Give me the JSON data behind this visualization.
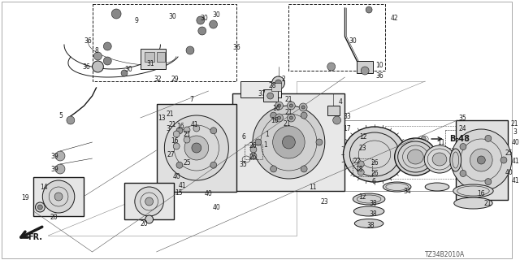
{
  "title": "",
  "diagram_code": "TZ34B2010A",
  "background_color": "#f5f5f0",
  "line_color": "#1a1a1a",
  "fig_width": 6.4,
  "fig_height": 3.2,
  "dpi": 100,
  "bottom_text": "TZ34B2010A",
  "fr_text": "FR."
}
